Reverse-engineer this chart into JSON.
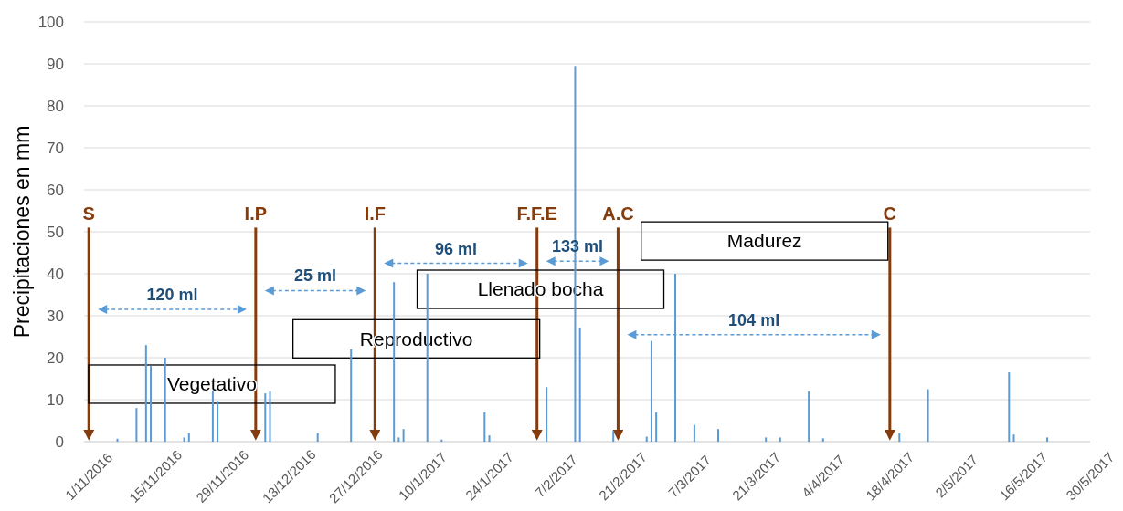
{
  "chart_data": {
    "type": "bar",
    "ylabel": "Precipitaciones en mm",
    "x": [
      "2016-11-07",
      "2016-11-11",
      "2016-11-13",
      "2016-11-14",
      "2016-11-17",
      "2016-11-21",
      "2016-11-22",
      "2016-11-27",
      "2016-11-28",
      "2016-12-08",
      "2016-12-09",
      "2016-12-19",
      "2016-12-26",
      "2017-01-04",
      "2017-01-05",
      "2017-01-06",
      "2017-01-11",
      "2017-01-14",
      "2017-01-23",
      "2017-01-24",
      "2017-02-05",
      "2017-02-11",
      "2017-02-12",
      "2017-02-19",
      "2017-02-26",
      "2017-02-27",
      "2017-02-28",
      "2017-03-04",
      "2017-03-08",
      "2017-03-13",
      "2017-03-23",
      "2017-03-26",
      "2017-04-01",
      "2017-04-04",
      "2017-04-20",
      "2017-04-26",
      "2017-05-13",
      "2017-05-14",
      "2017-05-21"
    ],
    "values": [
      0.7,
      8,
      23,
      18,
      20,
      1,
      2,
      12,
      9.5,
      11.5,
      12,
      2,
      22,
      38,
      1,
      3,
      40,
      0.5,
      7,
      1.5,
      13,
      89.5,
      27,
      2.5,
      1.2,
      24,
      7,
      40,
      4,
      3,
      1,
      1,
      12,
      0.8,
      2,
      12.5,
      16.5,
      1.7,
      1
    ],
    "color": "#5b9bd5",
    "xlim": [
      "2016-10-31",
      "2017-05-30"
    ],
    "xticks": [
      {
        "value": "2016-11-01",
        "label": "1/11/2016"
      },
      {
        "value": "2016-11-15",
        "label": "15/11/2016"
      },
      {
        "value": "2016-11-29",
        "label": "29/11/2016"
      },
      {
        "value": "2016-12-13",
        "label": "13/12/2016"
      },
      {
        "value": "2016-12-27",
        "label": "27/12/2016"
      },
      {
        "value": "2017-01-10",
        "label": "10/1/2017"
      },
      {
        "value": "2017-01-24",
        "label": "24/1/2017"
      },
      {
        "value": "2017-02-07",
        "label": "7/2/2017"
      },
      {
        "value": "2017-02-21",
        "label": "21/2/2017"
      },
      {
        "value": "2017-03-07",
        "label": "7/3/2017"
      },
      {
        "value": "2017-03-21",
        "label": "21/3/2017"
      },
      {
        "value": "2017-04-04",
        "label": "4/4/2017"
      },
      {
        "value": "2017-04-18",
        "label": "18/4/2017"
      },
      {
        "value": "2017-05-02",
        "label": "2/5/2017"
      },
      {
        "value": "2017-05-16",
        "label": "16/5/2017"
      },
      {
        "value": "2017-05-30",
        "label": "30/5/2017"
      }
    ],
    "ylim": [
      0,
      100
    ],
    "yticks": [
      0,
      10,
      20,
      30,
      40,
      50,
      60,
      70,
      80,
      90,
      100
    ],
    "grid": "y",
    "ref_lines": [
      {
        "axis": "x",
        "value": "2016-11-01",
        "label": "S",
        "color": "#843c0c"
      },
      {
        "axis": "x",
        "value": "2016-12-06",
        "label": "I.P",
        "color": "#843c0c"
      },
      {
        "axis": "x",
        "value": "2016-12-31",
        "label": "I.F",
        "color": "#843c0c"
      },
      {
        "axis": "x",
        "value": "2017-02-03",
        "label": "F.F.E",
        "color": "#843c0c"
      },
      {
        "axis": "x",
        "value": "2017-02-20",
        "label": "A.C",
        "color": "#843c0c"
      },
      {
        "axis": "x",
        "value": "2017-04-18",
        "label": "C",
        "color": "#843c0c"
      }
    ],
    "annotations": [
      "120 ml",
      "25 ml",
      "96 ml",
      "133 ml",
      "104 ml",
      "Vegetativo",
      "Reproductivo",
      "Llenado bocha",
      "Madurez"
    ]
  }
}
